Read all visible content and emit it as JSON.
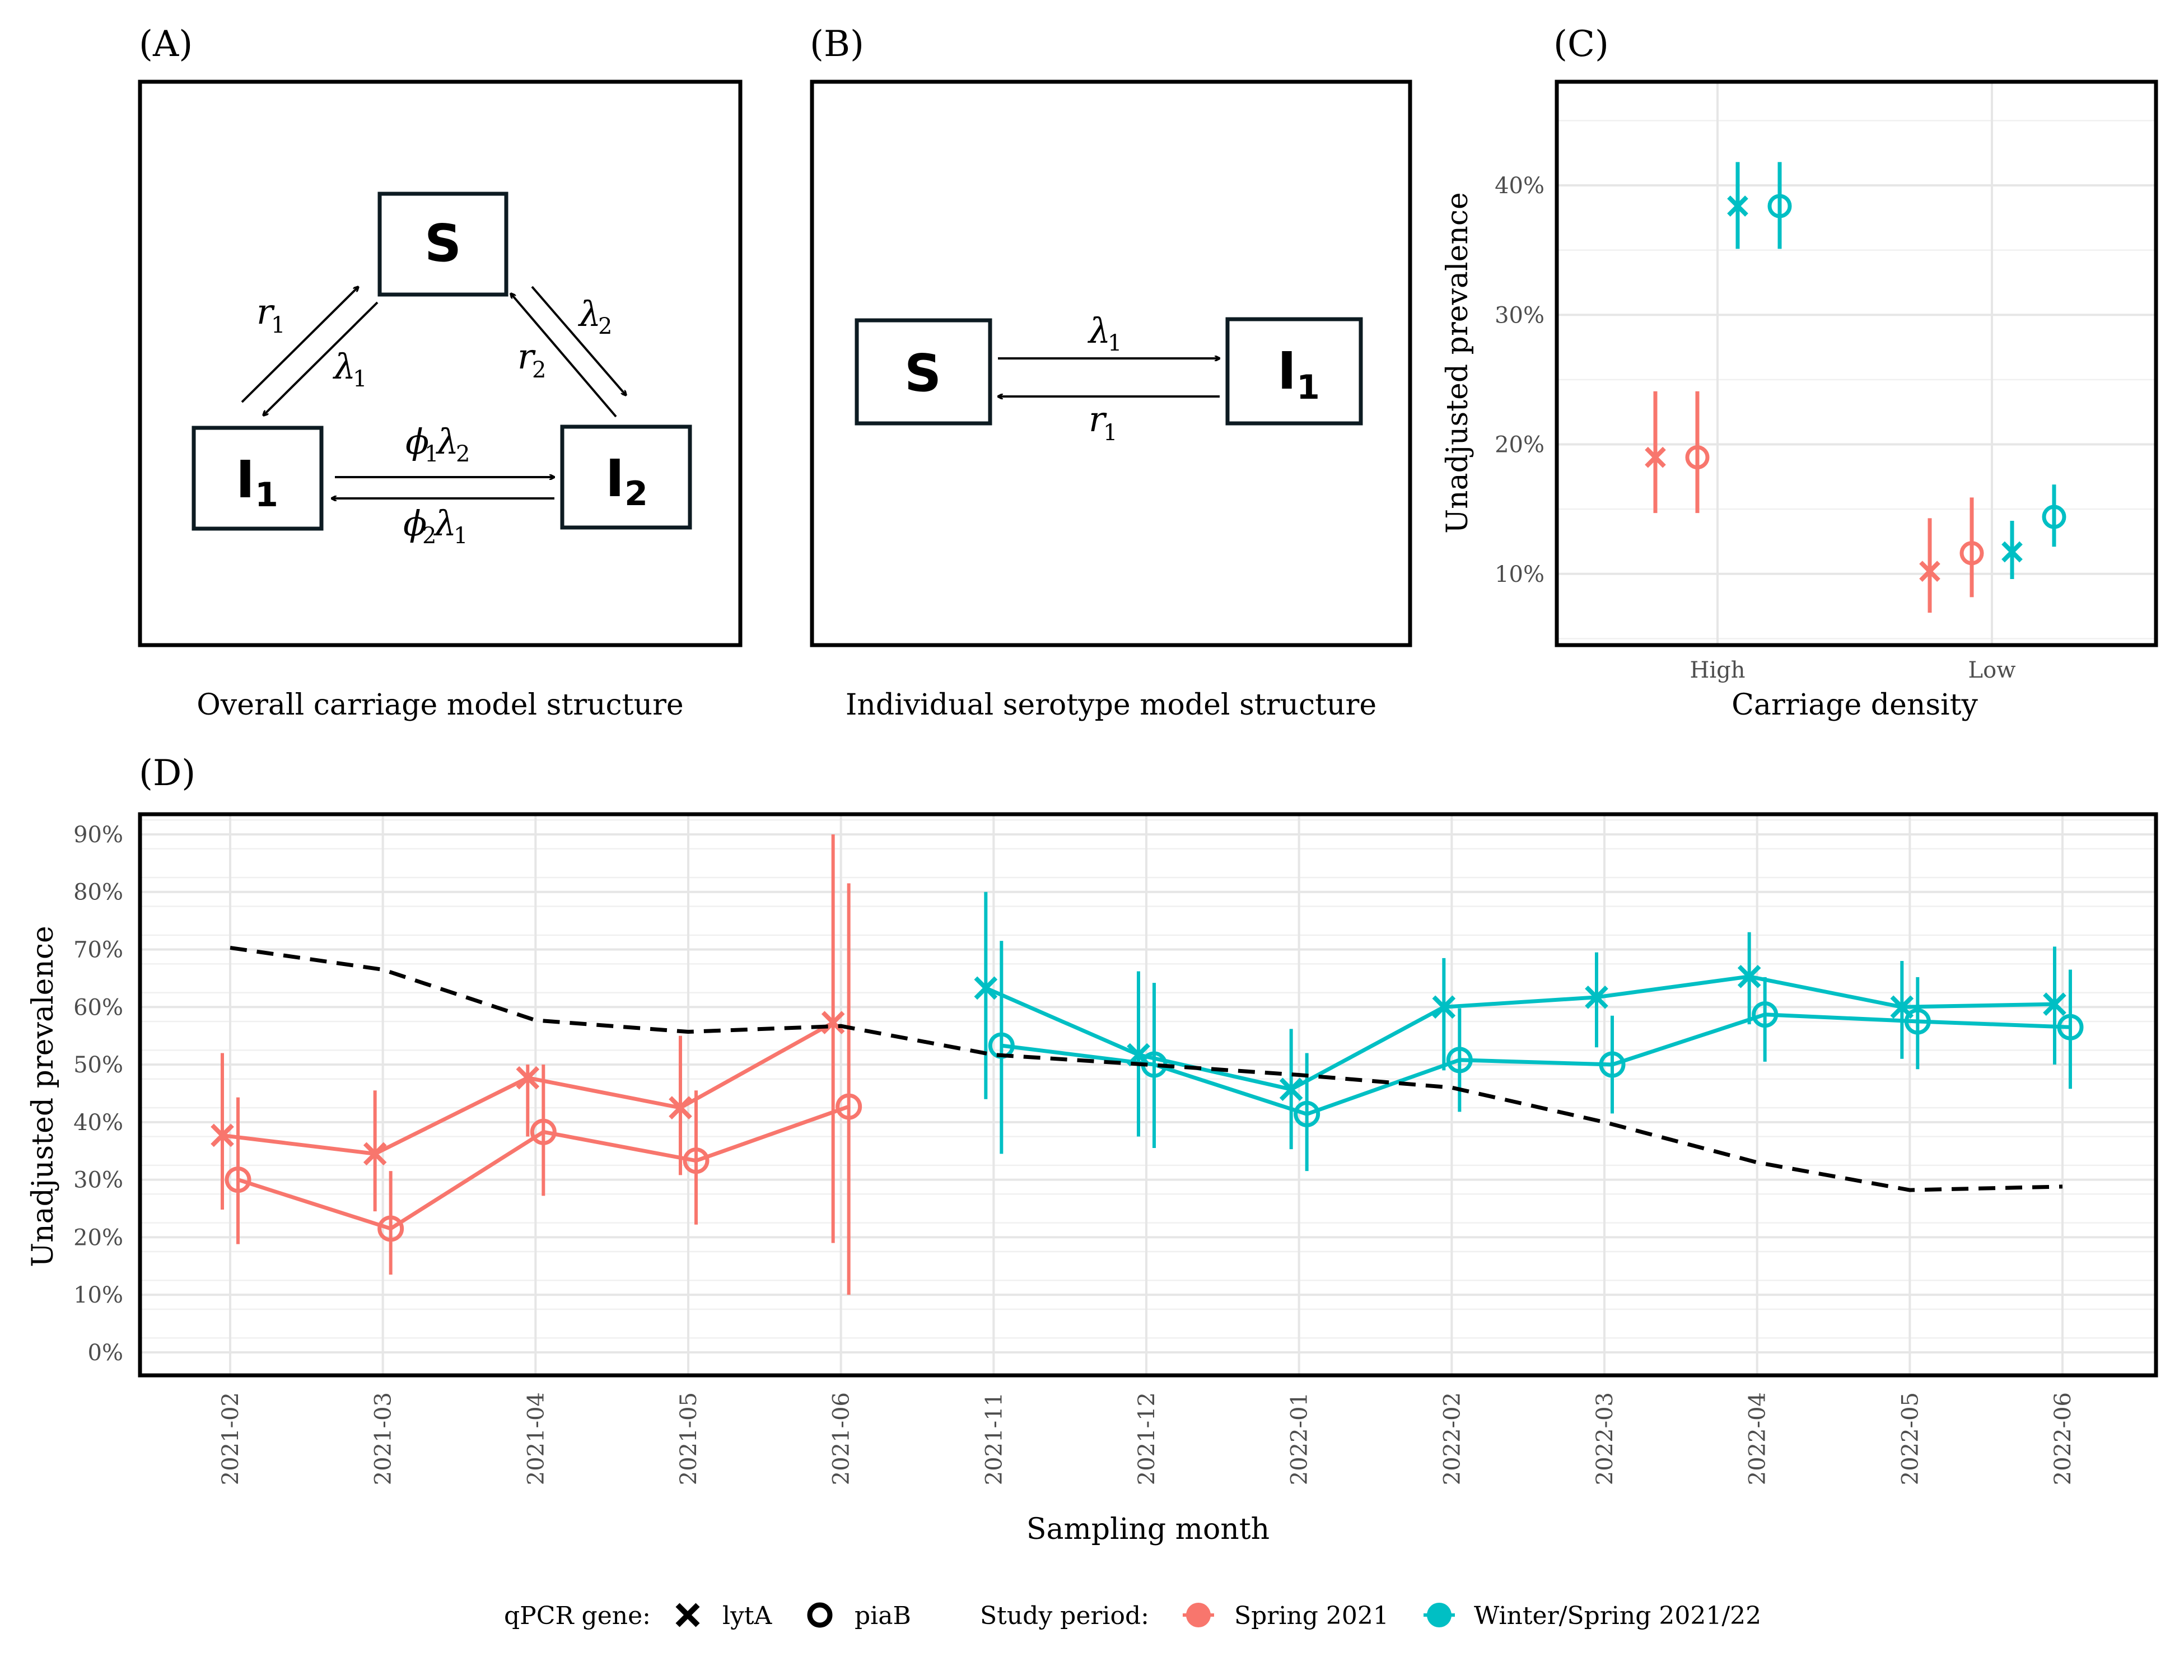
{
  "panels": {
    "A": {
      "label": "(A)",
      "caption": "Overall carriage model structure",
      "nodes": {
        "S": "S",
        "I1": "I",
        "I1_sub": "1",
        "I2": "I",
        "I2_sub": "2"
      }
    },
    "B": {
      "label": "(B)",
      "caption": "Individual serotype model structure",
      "nodes": {
        "S": "S",
        "I1": "I",
        "I1_sub": "1"
      }
    },
    "C": {
      "label": "(C)"
    },
    "D": {
      "label": "(D)"
    }
  },
  "legend": {
    "gene_title": "qPCR gene:",
    "gene_items": [
      "lytA",
      "piaB"
    ],
    "period_title": "Study period:",
    "period_items": [
      "Spring 2021",
      "Winter/Spring 2021/22"
    ]
  },
  "colors": {
    "spring": "#f8766d",
    "winter": "#00bfc4",
    "dashed": "#000000"
  },
  "icons": {
    "lytA": "cross-marker-icon",
    "piaB": "circle-marker-icon"
  },
  "chart_data": [
    {
      "type": "scatter",
      "panel": "C",
      "xlabel": "Carriage density",
      "ylabel": "Unadjusted prevalence",
      "categories": [
        "High",
        "Low"
      ],
      "ylim": [
        0.045,
        0.48
      ],
      "yticks": [
        "10%",
        "20%",
        "30%",
        "40%"
      ],
      "series": [
        {
          "name": "Spring 2021",
          "gene": "lytA",
          "values": [
            0.19,
            0.102
          ],
          "lower": [
            0.147,
            0.07
          ],
          "upper": [
            0.241,
            0.143
          ]
        },
        {
          "name": "Spring 2021",
          "gene": "piaB",
          "values": [
            0.19,
            0.116
          ],
          "lower": [
            0.147,
            0.082
          ],
          "upper": [
            0.241,
            0.159
          ]
        },
        {
          "name": "Winter/Spring 2021/22",
          "gene": "lytA",
          "values": [
            0.384,
            0.117
          ],
          "lower": [
            0.351,
            0.096
          ],
          "upper": [
            0.418,
            0.141
          ]
        },
        {
          "name": "Winter/Spring 2021/22",
          "gene": "piaB",
          "values": [
            0.384,
            0.144
          ],
          "lower": [
            0.351,
            0.121
          ],
          "upper": [
            0.418,
            0.169
          ]
        }
      ]
    },
    {
      "type": "line",
      "panel": "D",
      "xlabel": "Sampling month",
      "ylabel": "Unadjusted prevalence",
      "categories": [
        "2021-02",
        "2021-03",
        "2021-04",
        "2021-05",
        "2021-06",
        "2021-11",
        "2021-12",
        "2022-01",
        "2022-02",
        "2022-03",
        "2022-04",
        "2022-05",
        "2022-06"
      ],
      "ylim": [
        -0.04,
        0.935
      ],
      "yticks": [
        "0%",
        "10%",
        "20%",
        "30%",
        "40%",
        "50%",
        "60%",
        "70%",
        "80%",
        "90%"
      ],
      "series": [
        {
          "name": "Spring 2021",
          "gene": "lytA",
          "x": [
            0,
            1,
            2,
            3,
            4
          ],
          "values": [
            0.377,
            0.345,
            0.477,
            0.425,
            0.573
          ],
          "lower": [
            0.248,
            0.245,
            0.375,
            0.308,
            0.19
          ],
          "upper": [
            0.52,
            0.455,
            0.5,
            0.55,
            0.9
          ]
        },
        {
          "name": "Spring 2021",
          "gene": "piaB",
          "x": [
            0,
            1,
            2,
            3,
            4
          ],
          "values": [
            0.3,
            0.215,
            0.383,
            0.333,
            0.427
          ],
          "lower": [
            0.188,
            0.135,
            0.272,
            0.222,
            0.1
          ],
          "upper": [
            0.443,
            0.315,
            0.5,
            0.455,
            0.815
          ]
        },
        {
          "name": "Winter/Spring 2021/22",
          "gene": "lytA",
          "x": [
            5,
            6,
            7,
            8,
            9,
            10,
            11,
            12
          ],
          "values": [
            0.633,
            0.517,
            0.457,
            0.6,
            0.617,
            0.653,
            0.6,
            0.605
          ],
          "lower": [
            0.44,
            0.375,
            0.353,
            0.49,
            0.53,
            0.57,
            0.51,
            0.5
          ],
          "upper": [
            0.8,
            0.662,
            0.562,
            0.685,
            0.695,
            0.73,
            0.68,
            0.705
          ]
        },
        {
          "name": "Winter/Spring 2021/22",
          "gene": "piaB",
          "x": [
            5,
            6,
            7,
            8,
            9,
            10,
            11,
            12
          ],
          "values": [
            0.533,
            0.5,
            0.414,
            0.508,
            0.5,
            0.587,
            0.575,
            0.565
          ],
          "lower": [
            0.345,
            0.355,
            0.315,
            0.418,
            0.415,
            0.505,
            0.492,
            0.458
          ],
          "upper": [
            0.715,
            0.642,
            0.52,
            0.598,
            0.585,
            0.652,
            0.652,
            0.665
          ]
        },
        {
          "name": "",
          "style": "dashed",
          "x": [
            0,
            1,
            2,
            3,
            4,
            5,
            6,
            7,
            8,
            9,
            10,
            11,
            12
          ],
          "values": [
            0.703,
            0.665,
            0.577,
            0.557,
            0.567,
            0.517,
            0.5,
            0.482,
            0.46,
            0.4,
            0.33,
            0.282,
            0.288
          ]
        }
      ]
    }
  ]
}
